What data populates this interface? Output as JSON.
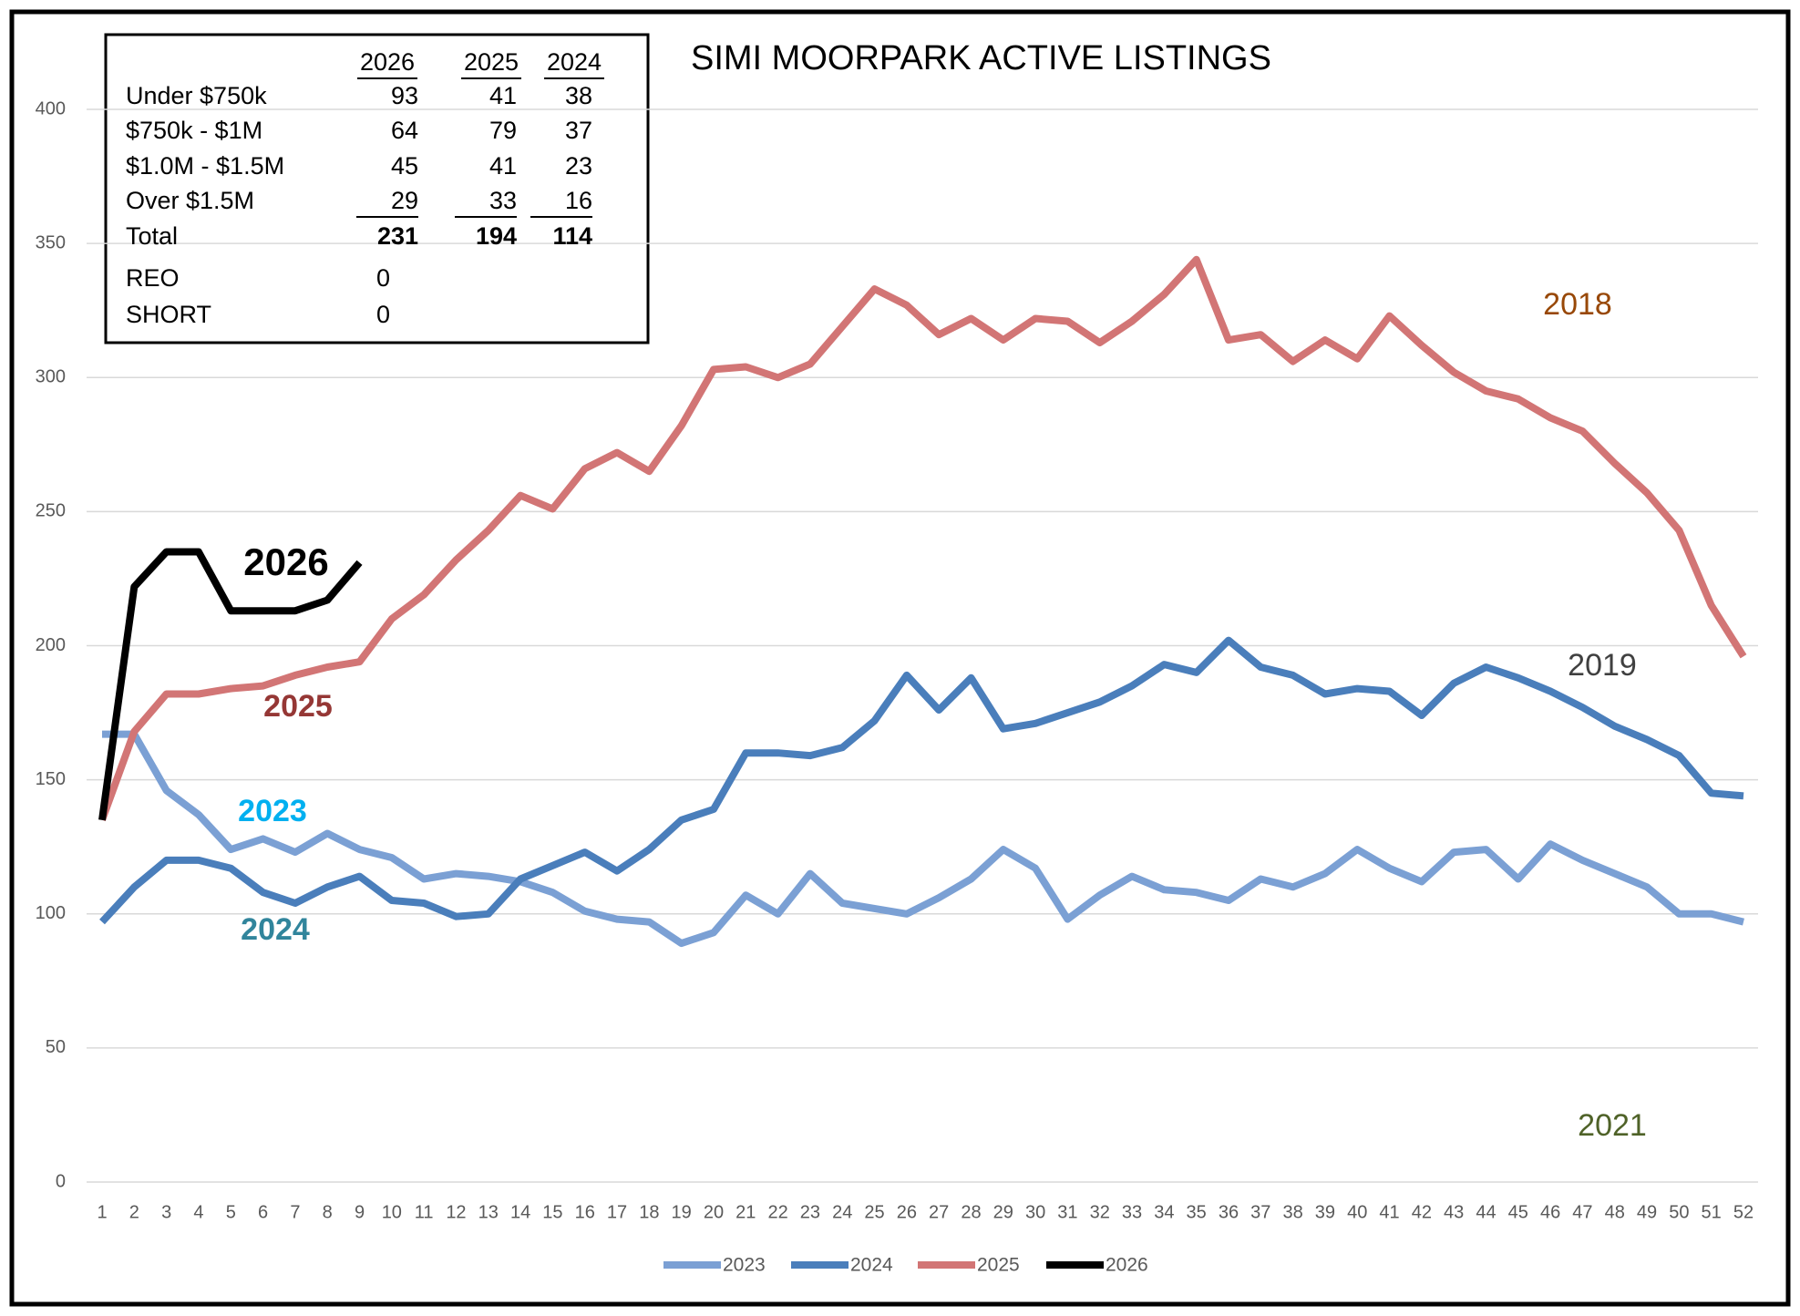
{
  "chart_data": {
    "type": "line",
    "title": "SIMI MOORPARK ACTIVE LISTINGS",
    "categories": [
      1,
      2,
      3,
      4,
      5,
      6,
      7,
      8,
      9,
      10,
      11,
      12,
      13,
      14,
      15,
      16,
      17,
      18,
      19,
      20,
      21,
      22,
      23,
      24,
      25,
      26,
      27,
      28,
      29,
      30,
      31,
      32,
      33,
      34,
      35,
      36,
      37,
      38,
      39,
      40,
      41,
      42,
      43,
      44,
      45,
      46,
      47,
      48,
      49,
      50,
      51,
      52
    ],
    "ylim": [
      0,
      400
    ],
    "yticks": [
      0,
      50,
      100,
      150,
      200,
      250,
      300,
      350,
      400
    ],
    "grid": true,
    "legend": "bottom",
    "series": [
      {
        "name": "2023",
        "color": "#7ba0d4",
        "values": [
          167,
          167,
          146,
          137,
          124,
          128,
          123,
          130,
          124,
          121,
          113,
          115,
          114,
          112,
          108,
          101,
          98,
          97,
          89,
          93,
          107,
          100,
          115,
          104,
          102,
          100,
          106,
          113,
          124,
          117,
          98,
          107,
          114,
          109,
          108,
          105,
          113,
          110,
          115,
          124,
          117,
          112,
          123,
          124,
          113,
          126,
          120,
          115,
          110,
          100,
          100,
          97
        ]
      },
      {
        "name": "2024",
        "color": "#4a7ebb",
        "values": [
          97,
          110,
          120,
          120,
          117,
          108,
          104,
          110,
          114,
          105,
          104,
          99,
          100,
          113,
          118,
          123,
          116,
          124,
          135,
          139,
          160,
          160,
          159,
          162,
          172,
          189,
          176,
          188,
          169,
          171,
          175,
          179,
          185,
          193,
          190,
          202,
          192,
          189,
          182,
          184,
          183,
          174,
          186,
          192,
          188,
          183,
          177,
          170,
          165,
          159,
          145,
          144
        ]
      },
      {
        "name": "2025",
        "color": "#d27575",
        "values": [
          135,
          168,
          182,
          182,
          184,
          185,
          189,
          192,
          194,
          210,
          219,
          232,
          243,
          256,
          251,
          266,
          272,
          265,
          282,
          303,
          304,
          300,
          305,
          319,
          333,
          327,
          316,
          322,
          314,
          322,
          321,
          313,
          321,
          331,
          344,
          314,
          316,
          306,
          314,
          307,
          323,
          312,
          302,
          295,
          292,
          285,
          280,
          268,
          257,
          243,
          215,
          196
        ]
      },
      {
        "name": "2026",
        "color": "#000000",
        "values": [
          135,
          222,
          235,
          235,
          213,
          213,
          213,
          217,
          231,
          null,
          null,
          null,
          null,
          null,
          null,
          null,
          null,
          null,
          null,
          null,
          null,
          null,
          null,
          null,
          null,
          null,
          null,
          null,
          null,
          null,
          null,
          null,
          null,
          null,
          null,
          null,
          null,
          null,
          null,
          null,
          null,
          null,
          null,
          null,
          null,
          null,
          null,
          null,
          null,
          null,
          null,
          null
        ]
      }
    ],
    "annotations": [
      {
        "text": "2026",
        "color": "#000000",
        "bold": true
      },
      {
        "text": "2025",
        "color": "#953735",
        "bold": true
      },
      {
        "text": "2023",
        "color": "#00b0f0",
        "bold": true
      },
      {
        "text": "2024",
        "color": "#31859c",
        "bold": true
      },
      {
        "text": "2018",
        "color": "#984807",
        "bold": false
      },
      {
        "text": "2019",
        "color": "#404040",
        "bold": false
      },
      {
        "text": "2021",
        "color": "#4f6228",
        "bold": false
      }
    ],
    "inset_table": {
      "columns": [
        "2026",
        "2025",
        "2024"
      ],
      "rows": [
        {
          "label": "Under $750k",
          "values": [
            93,
            41,
            38
          ]
        },
        {
          "label": "$750k - $1M",
          "values": [
            64,
            79,
            37
          ]
        },
        {
          "label": "$1.0M - $1.5M",
          "values": [
            45,
            41,
            23
          ]
        },
        {
          "label": "Over $1.5M",
          "values": [
            29,
            33,
            16
          ]
        },
        {
          "label": "Total",
          "values": [
            231,
            194,
            114
          ]
        },
        {
          "label": "REO",
          "values": [
            0
          ]
        },
        {
          "label": "SHORT",
          "values": [
            0
          ]
        }
      ]
    }
  }
}
